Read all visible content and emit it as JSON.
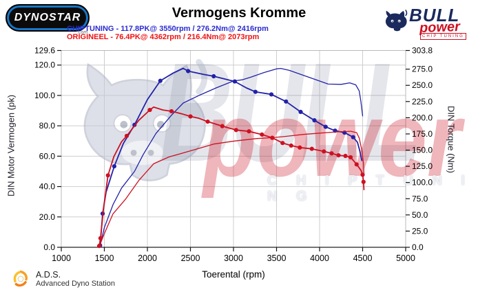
{
  "header": {
    "title": "Vermogens Kromme",
    "dynostar_logo": {
      "text": "DYNOSTAR",
      "suffix": ".com"
    },
    "bull_logo": {
      "bull": "BULL",
      "power": "power",
      "chip": "CHIP TUNING"
    },
    "legend": [
      {
        "label": "CHIPTUNING - 117.8PK@ 3550rpm / 276.2Nm@ 2416rpm",
        "color": "#2a2ad0"
      },
      {
        "label": "ORIGINEEL - 76.4PK@ 4362rpm / 216.4Nm@ 2073rpm",
        "color": "#ee1111"
      }
    ]
  },
  "watermark": {
    "bull_word": "BULL",
    "power_word": "power",
    "chip_word": "C H I P   T U N I N G"
  },
  "footer": {
    "abbr": "A.D.S.",
    "name": "Advanced Dyno Station"
  },
  "chart_data": {
    "type": "line",
    "title": "Vermogens Kromme",
    "xlabel": "Toerental (rpm)",
    "ylabel_left": "DIN Motor Vermogen (pk)",
    "ylabel_right": "DIN Torque (Nm)",
    "x_range": [
      1000,
      5000
    ],
    "y_left_range": [
      0,
      129.6
    ],
    "y_right_range": [
      0,
      303.8
    ],
    "grid": true,
    "legend_position": "top",
    "style": {
      "grid_color": "#cdcdcd",
      "border_color": "#b8b8b8",
      "axis_color": "#222222",
      "tick_color": "#111111",
      "label_color": "#000000",
      "blue": "#2121aa",
      "red": "#cc1122"
    },
    "x_ticks": [
      {
        "v": 1000,
        "label": "1000"
      },
      {
        "v": 1500,
        "label": "1500"
      },
      {
        "v": 2000,
        "label": "2000"
      },
      {
        "v": 2500,
        "label": "2500"
      },
      {
        "v": 3000,
        "label": "3000"
      },
      {
        "v": 3500,
        "label": "3500"
      },
      {
        "v": 4000,
        "label": "4000"
      },
      {
        "v": 4500,
        "label": "4500"
      },
      {
        "v": 5000,
        "label": "5000"
      }
    ],
    "y_left_ticks": [
      {
        "v": 129.6,
        "label": "129.6"
      },
      {
        "v": 120,
        "label": "120.0"
      },
      {
        "v": 100,
        "label": "100.0"
      },
      {
        "v": 80,
        "label": "80.0"
      },
      {
        "v": 60,
        "label": "60.0"
      },
      {
        "v": 40,
        "label": "40.0"
      },
      {
        "v": 20,
        "label": "20.0"
      },
      {
        "v": 0,
        "label": "0.0"
      }
    ],
    "y_right_ticks": [
      {
        "v": 303.8,
        "label": "303.8"
      },
      {
        "v": 275,
        "label": "275.0"
      },
      {
        "v": 250,
        "label": "250.0"
      },
      {
        "v": 225,
        "label": "225.0"
      },
      {
        "v": 200,
        "label": "200.0"
      },
      {
        "v": 175,
        "label": "175.0"
      },
      {
        "v": 150,
        "label": "150.0"
      },
      {
        "v": 125,
        "label": "125.0"
      },
      {
        "v": 100,
        "label": "100.0"
      },
      {
        "v": 75,
        "label": "75.0"
      },
      {
        "v": 50,
        "label": "50.0"
      },
      {
        "v": 25,
        "label": "25.0"
      },
      {
        "v": 0,
        "label": "0.0"
      }
    ],
    "series": [
      {
        "name": "chiptuning-torque-nm",
        "axis": "right",
        "color": "#2121aa",
        "width": 1.8,
        "peak_label": "276.2Nm@ 2416rpm",
        "points": [
          [
            1450,
            3
          ],
          [
            1465,
            25
          ],
          [
            1480,
            52
          ],
          [
            1520,
            85
          ],
          [
            1615,
            125
          ],
          [
            1720,
            160
          ],
          [
            1850,
            189
          ],
          [
            2000,
            228
          ],
          [
            2150,
            257
          ],
          [
            2300,
            269
          ],
          [
            2416,
            276.2
          ],
          [
            2473,
            272
          ],
          [
            2650,
            267
          ],
          [
            2770,
            264
          ],
          [
            3015,
            256
          ],
          [
            3150,
            246
          ],
          [
            3255,
            240
          ],
          [
            3440,
            236
          ],
          [
            3610,
            225
          ],
          [
            3780,
            209
          ],
          [
            3940,
            196
          ],
          [
            4070,
            186
          ],
          [
            4180,
            180
          ],
          [
            4290,
            177
          ],
          [
            4390,
            170
          ],
          [
            4440,
            162
          ],
          [
            4465,
            150
          ],
          [
            4490,
            134
          ]
        ],
        "marker_rpms": [
          1450,
          1480,
          1615,
          1850,
          2150,
          2473,
          2770,
          3015,
          3255,
          3440,
          3610,
          3780,
          3940,
          4070,
          4180,
          4290,
          4390
        ]
      },
      {
        "name": "chiptuning-power-pk",
        "axis": "left",
        "color": "#2121aa",
        "width": 1.3,
        "peak_label": "117.8PK@ 3550rpm",
        "points": [
          [
            1450,
            1
          ],
          [
            1500,
            13
          ],
          [
            1600,
            28
          ],
          [
            1700,
            39
          ],
          [
            1850,
            50
          ],
          [
            1950,
            61
          ],
          [
            2100,
            75
          ],
          [
            2280,
            87
          ],
          [
            2416,
            95
          ],
          [
            2600,
            100
          ],
          [
            2800,
            105
          ],
          [
            3000,
            109.5
          ],
          [
            3100,
            110.3
          ],
          [
            3200,
            112
          ],
          [
            3350,
            115
          ],
          [
            3500,
            117.5
          ],
          [
            3550,
            117.8
          ],
          [
            3650,
            116.5
          ],
          [
            3800,
            113.5
          ],
          [
            3950,
            110.5
          ],
          [
            4100,
            107.5
          ],
          [
            4250,
            107.3
          ],
          [
            4350,
            108.3
          ],
          [
            4420,
            107
          ],
          [
            4460,
            103
          ],
          [
            4480,
            96
          ],
          [
            4500,
            86.5
          ]
        ],
        "marker_rpms": []
      },
      {
        "name": "origineel-torque-nm",
        "axis": "right",
        "color": "#cc1122",
        "width": 1.8,
        "peak_label": "216.4Nm@ 2073rpm",
        "points": [
          [
            1440,
            2
          ],
          [
            1455,
            14
          ],
          [
            1490,
            60
          ],
          [
            1542,
            111
          ],
          [
            1610,
            140
          ],
          [
            1700,
            163
          ],
          [
            1760,
            172
          ],
          [
            1900,
            196
          ],
          [
            2028,
            212
          ],
          [
            2073,
            216.4
          ],
          [
            2180,
            212
          ],
          [
            2280,
            210
          ],
          [
            2400,
            206
          ],
          [
            2500,
            202
          ],
          [
            2600,
            199
          ],
          [
            2700,
            194
          ],
          [
            2870,
            187
          ],
          [
            3030,
            181
          ],
          [
            3180,
            179
          ],
          [
            3330,
            174
          ],
          [
            3450,
            169
          ],
          [
            3570,
            161
          ],
          [
            3670,
            157
          ],
          [
            3770,
            154
          ],
          [
            3910,
            152
          ],
          [
            4050,
            148
          ],
          [
            4140,
            145
          ],
          [
            4220,
            142
          ],
          [
            4300,
            141
          ],
          [
            4360,
            139
          ],
          [
            4430,
            128
          ],
          [
            4480,
            119
          ],
          [
            4500,
            112
          ],
          [
            4510,
            101
          ],
          [
            4515,
            89
          ]
        ],
        "marker_rpms": [
          1440,
          1455,
          1542,
          1760,
          2028,
          2280,
          2500,
          2700,
          2870,
          3030,
          3180,
          3330,
          3450,
          3570,
          3670,
          3770,
          3910,
          4050,
          4140,
          4220,
          4300,
          4360,
          4430,
          4500,
          4510
        ]
      },
      {
        "name": "origineel-power-pk",
        "axis": "left",
        "color": "#cc1122",
        "width": 1.3,
        "peak_label": "76.4PK@ 4362rpm",
        "points": [
          [
            1440,
            0.5
          ],
          [
            1500,
            9
          ],
          [
            1600,
            22
          ],
          [
            1750,
            32
          ],
          [
            1900,
            44
          ],
          [
            2073,
            55
          ],
          [
            2250,
            59.5
          ],
          [
            2530,
            64
          ],
          [
            2770,
            68
          ],
          [
            3010,
            70
          ],
          [
            3270,
            71.6
          ],
          [
            3450,
            72.2
          ],
          [
            3600,
            73
          ],
          [
            3810,
            74.3
          ],
          [
            4000,
            75.2
          ],
          [
            4200,
            76
          ],
          [
            4362,
            76.4
          ],
          [
            4430,
            75.5
          ],
          [
            4460,
            72
          ],
          [
            4490,
            64
          ],
          [
            4510,
            55
          ],
          [
            4515,
            48
          ]
        ],
        "marker_rpms": []
      }
    ]
  }
}
